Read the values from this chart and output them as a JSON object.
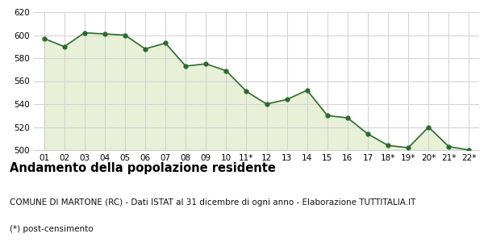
{
  "x_labels": [
    "01",
    "02",
    "03",
    "04",
    "05",
    "06",
    "07",
    "08",
    "09",
    "10",
    "11*",
    "12",
    "13",
    "14",
    "15",
    "16",
    "17",
    "18*",
    "19*",
    "20*",
    "21*",
    "22*"
  ],
  "y_values": [
    597,
    590,
    602,
    601,
    600,
    588,
    593,
    573,
    575,
    569,
    551,
    540,
    544,
    552,
    530,
    528,
    514,
    504,
    502,
    520,
    503,
    500
  ],
  "line_color": "#2d6a2d",
  "fill_color": "#e8f0d8",
  "marker": "o",
  "marker_size": 3.5,
  "ylim": [
    500,
    620
  ],
  "yticks": [
    500,
    520,
    540,
    560,
    580,
    600,
    620
  ],
  "title": "Andamento della popolazione residente",
  "subtitle": "COMUNE DI MARTONE (RC) - Dati ISTAT al 31 dicembre di ogni anno - Elaborazione TUTTITALIA.IT",
  "footnote": "(*) post-censimento",
  "bg_color": "#ffffff",
  "grid_color": "#d0d0d0",
  "title_fontsize": 10.5,
  "subtitle_fontsize": 7.5,
  "footnote_fontsize": 7.5,
  "tick_fontsize": 7.5
}
